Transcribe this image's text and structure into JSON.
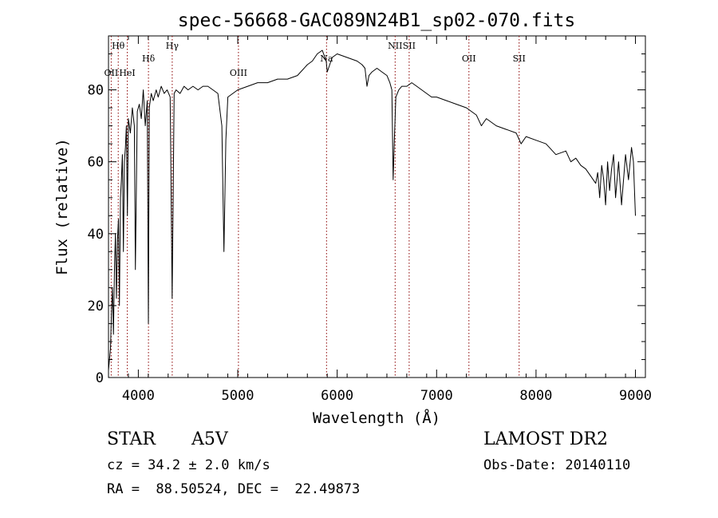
{
  "chart_data": {
    "type": "line",
    "title": "spec-56668-GAC089N24B1_sp02-070.fits",
    "xlabel": "Wavelength (Å)",
    "ylabel": "Flux (relative)",
    "xlim": [
      3700,
      9100
    ],
    "ylim": [
      0,
      95
    ],
    "xticks": [
      4000,
      5000,
      6000,
      7000,
      8000,
      9000
    ],
    "yticks": [
      0,
      20,
      40,
      60,
      80
    ],
    "grid": false,
    "line_color": "#000000",
    "marker_color": "#8b0000",
    "series": [
      {
        "x": [
          3700,
          3710,
          3720,
          3730,
          3740,
          3750,
          3760,
          3770,
          3780,
          3790,
          3800,
          3810,
          3820,
          3830,
          3840,
          3850,
          3860,
          3870,
          3880,
          3890,
          3900,
          3920,
          3940,
          3960,
          3970,
          3990,
          4010,
          4030,
          4050,
          4070,
          4090,
          4101,
          4110,
          4130,
          4150,
          4180,
          4200,
          4230,
          4260,
          4290,
          4320,
          4340,
          4360,
          4380,
          4420,
          4460,
          4500,
          4550,
          4600,
          4650,
          4700,
          4750,
          4800,
          4840,
          4861,
          4880,
          4900,
          4950,
          5000,
          5100,
          5200,
          5300,
          5400,
          5500,
          5600,
          5700,
          5750,
          5800,
          5850,
          5890,
          5900,
          5950,
          6000,
          6100,
          6200,
          6250,
          6280,
          6300,
          6320,
          6350,
          6400,
          6450,
          6500,
          6530,
          6550,
          6563,
          6575,
          6590,
          6620,
          6650,
          6700,
          6750,
          6800,
          6850,
          6900,
          6950,
          7000,
          7100,
          7200,
          7300,
          7400,
          7450,
          7500,
          7600,
          7700,
          7800,
          7850,
          7900,
          8000,
          8100,
          8200,
          8300,
          8350,
          8400,
          8450,
          8500,
          8550,
          8600,
          8620,
          8640,
          8660,
          8680,
          8700,
          8720,
          8740,
          8760,
          8780,
          8800,
          8830,
          8860,
          8900,
          8930,
          8960,
          8980,
          9000
        ],
        "values": [
          2,
          5,
          8,
          18,
          25,
          12,
          30,
          40,
          22,
          38,
          44,
          20,
          50,
          55,
          62,
          35,
          60,
          64,
          70,
          45,
          72,
          68,
          75,
          70,
          30,
          74,
          76,
          72,
          80,
          70,
          77,
          15,
          75,
          79,
          77,
          80,
          78,
          81,
          79,
          80,
          78,
          22,
          79,
          80,
          79,
          81,
          80,
          81,
          80,
          81,
          81,
          80,
          79,
          70,
          35,
          66,
          78,
          79,
          80,
          81,
          82,
          82,
          83,
          83,
          84,
          87,
          88,
          90,
          91,
          88,
          85,
          89,
          90,
          89,
          88,
          87,
          86,
          81,
          84,
          85,
          86,
          85,
          84,
          82,
          80,
          55,
          66,
          78,
          80,
          81,
          81,
          82,
          81,
          80,
          79,
          78,
          78,
          77,
          76,
          75,
          73,
          70,
          72,
          70,
          69,
          68,
          65,
          67,
          66,
          65,
          62,
          63,
          60,
          61,
          59,
          58,
          56,
          54,
          57,
          50,
          59,
          55,
          48,
          60,
          52,
          58,
          62,
          50,
          60,
          48,
          62,
          55,
          64,
          60,
          45
        ]
      }
    ],
    "line_markers": [
      {
        "label": "Hθ",
        "wavelength": 3798,
        "row": 0
      },
      {
        "label": "OII",
        "wavelength": 3727,
        "row": 2
      },
      {
        "label": "HeI",
        "wavelength": 3889,
        "row": 2
      },
      {
        "label": "Hδ",
        "wavelength": 4102,
        "row": 1
      },
      {
        "label": "Hγ",
        "wavelength": 4341,
        "row": 0
      },
      {
        "label": "OIII",
        "wavelength": 5007,
        "row": 2
      },
      {
        "label": "Na",
        "wavelength": 5893,
        "row": 1
      },
      {
        "label": "NII",
        "wavelength": 6583,
        "row": 0
      },
      {
        "label": "SII",
        "wavelength": 6724,
        "row": 0
      },
      {
        "label": "OII",
        "wavelength": 7325,
        "row": 1
      },
      {
        "label": "SII",
        "wavelength": 7830,
        "row": 1
      }
    ]
  },
  "info": {
    "object_type": "STAR",
    "subclass": "A5V",
    "survey": "LAMOST DR2",
    "cz": "cz = 34.2 ± 2.0 km/s",
    "obs_date": "Obs-Date: 20140110",
    "coords": "RA =  88.50524, DEC =  22.49873"
  }
}
